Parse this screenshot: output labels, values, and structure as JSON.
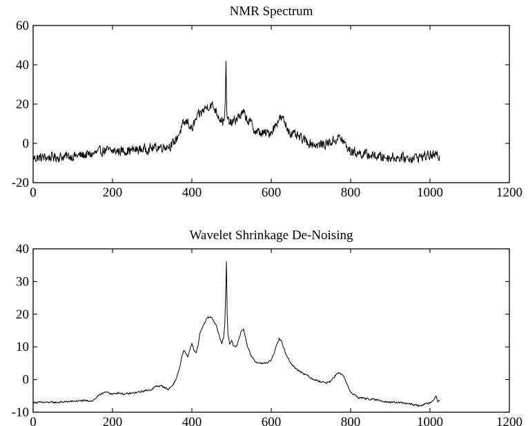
{
  "chart_data": [
    {
      "type": "line",
      "title": "NMR Spectrum",
      "xlabel": "",
      "ylabel": "",
      "xlim": [
        0,
        1200
      ],
      "ylim": [
        -20,
        60
      ],
      "xticks": [
        0,
        200,
        400,
        600,
        800,
        1000,
        1200
      ],
      "yticks": [
        -20,
        0,
        20,
        40,
        60
      ],
      "grid": false,
      "noise_amplitude": 2.2,
      "series": [
        {
          "x": [
            0,
            50,
            100,
            150,
            180,
            200,
            250,
            300,
            330,
            350,
            360,
            370,
            380,
            390,
            400,
            410,
            420,
            430,
            440,
            450,
            460,
            470,
            480,
            484,
            486,
            488,
            490,
            494,
            500,
            510,
            520,
            530,
            540,
            550,
            560,
            570,
            580,
            590,
            600,
            610,
            620,
            630,
            640,
            650,
            660,
            680,
            700,
            720,
            740,
            760,
            770,
            780,
            790,
            800,
            820,
            850,
            880,
            900,
            950,
            1000,
            1024
          ],
          "y": [
            -7.5,
            -7,
            -6.5,
            -5.5,
            -3.5,
            -4,
            -3.5,
            -2.5,
            -1.5,
            -1,
            2,
            6,
            10,
            11,
            7,
            12,
            15,
            17,
            19,
            19.5,
            17,
            13,
            11,
            18,
            41,
            15,
            11.5,
            11,
            10,
            12,
            14,
            15.5,
            12,
            10,
            6,
            5.5,
            5,
            5,
            6,
            9,
            13,
            12,
            8,
            5,
            4,
            2,
            0,
            -1,
            0,
            1.5,
            3,
            1.5,
            -2,
            -4,
            -5,
            -6,
            -7,
            -7,
            -7.5,
            -6,
            -6.5
          ]
        }
      ]
    },
    {
      "type": "line",
      "title": "Wavelet Shrinkage De-Noising",
      "xlabel": "",
      "ylabel": "",
      "xlim": [
        0,
        1200
      ],
      "ylim": [
        -10,
        40
      ],
      "xticks": [
        0,
        200,
        400,
        600,
        800,
        1000,
        1200
      ],
      "yticks": [
        -10,
        0,
        10,
        20,
        30,
        40
      ],
      "grid": false,
      "noise_amplitude": 0.25,
      "series": [
        {
          "x": [
            0,
            60,
            120,
            150,
            165,
            175,
            190,
            200,
            215,
            230,
            260,
            280,
            300,
            310,
            325,
            340,
            350,
            360,
            370,
            375,
            380,
            385,
            390,
            395,
            400,
            405,
            410,
            415,
            420,
            430,
            440,
            450,
            460,
            470,
            475,
            480,
            483,
            485,
            487,
            489,
            491,
            495,
            500,
            505,
            510,
            515,
            520,
            525,
            530,
            535,
            540,
            545,
            550,
            560,
            570,
            580,
            590,
            600,
            610,
            615,
            620,
            625,
            630,
            640,
            650,
            660,
            680,
            700,
            720,
            740,
            750,
            760,
            770,
            780,
            790,
            800,
            820,
            850,
            880,
            900,
            920,
            950,
            970,
            990,
            1000,
            1010,
            1015,
            1020,
            1024
          ],
          "y": [
            -7,
            -7,
            -6.5,
            -6.5,
            -5,
            -4,
            -4,
            -4.5,
            -4,
            -4.5,
            -4,
            -3.5,
            -3,
            -2,
            -2,
            -3,
            -2,
            0,
            4,
            7,
            9,
            8,
            7,
            9,
            11,
            9,
            8,
            10,
            14,
            17,
            19,
            19,
            17,
            13,
            11,
            13,
            17,
            25,
            36,
            20,
            14,
            11,
            12,
            10,
            10,
            11,
            13,
            15,
            15.5,
            13,
            10,
            9,
            7,
            5.5,
            5,
            5,
            5,
            6,
            9,
            11,
            12.5,
            12,
            10,
            7,
            5,
            3.5,
            2,
            0.5,
            -0.5,
            -1,
            -0.5,
            1,
            2,
            1.5,
            -1,
            -4,
            -5.5,
            -6,
            -6.5,
            -7,
            -7,
            -7.5,
            -8,
            -7.5,
            -7,
            -6,
            -5,
            -7,
            -6
          ]
        }
      ]
    }
  ]
}
